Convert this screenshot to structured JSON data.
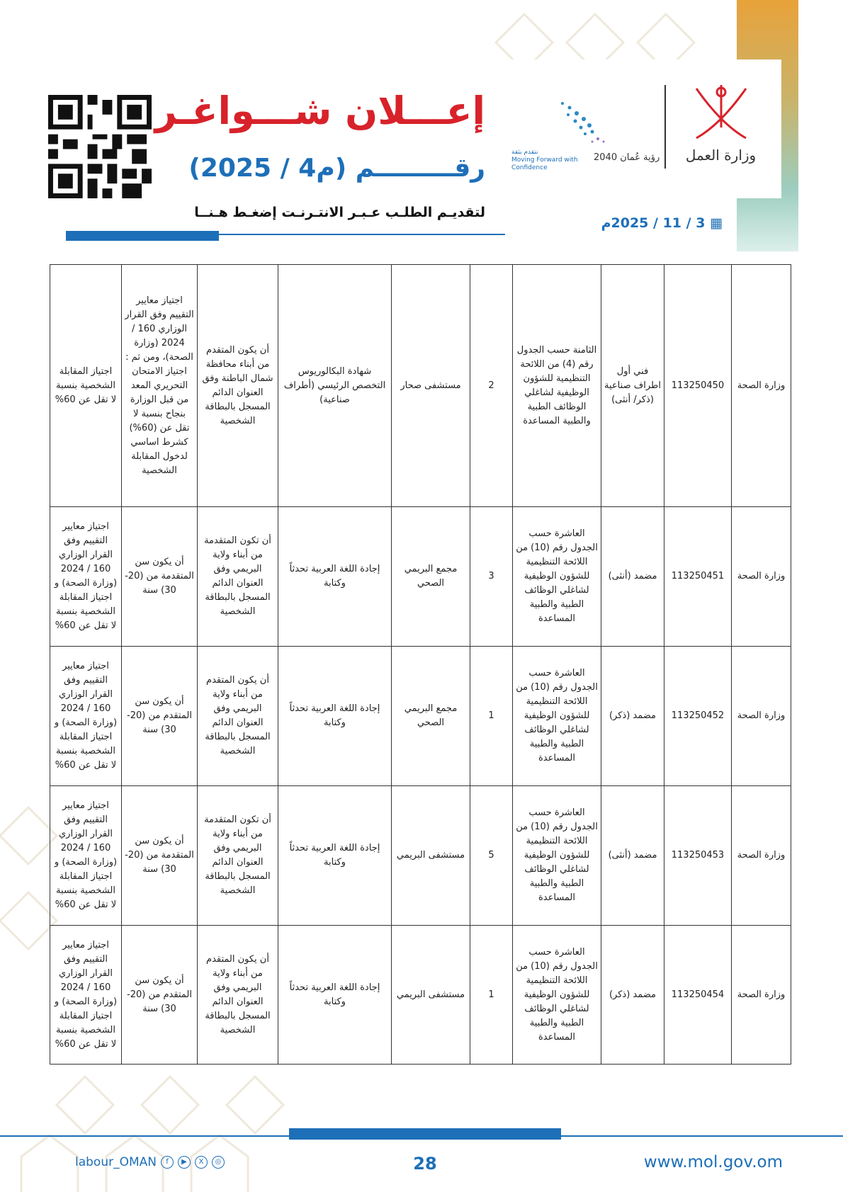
{
  "header": {
    "title": "إعـــلان شـــواغـر",
    "number": "رقـــــــــم (م4 / 2025)",
    "apply_link": "لتقديـم الطلـب عـبـر الانتـرنـت إضغـط هـنــا",
    "date": "3 / 11 / 2025م",
    "ministry_logo_text": "وزارة العمل",
    "vision_text_ar": "رؤية عُمان 2040",
    "vision_tagline": "Moving Forward with Confidence",
    "vision_tagline_ar": "نتقدم بثقة",
    "accent_color": "#d8222a",
    "brand_color": "#1d6fb8"
  },
  "table": {
    "rows": [
      [
        "وزارة الصحة",
        "113250450",
        "فني أول اطراف صناعية (ذكر/ أنثى)",
        "الثامنة حسب الجدول رقم (4) من اللائحة التنظيمية للشؤون الوظيفية لشاغلي الوظائف الطبية والطبية المساعدة",
        "2",
        "مستشفى صحار",
        "شهادة البكالوريوس التخصص الرئيسي (أطراف صناعية)",
        "أن يكون المتقدم من أبناء محافظة شمال الباطنة وفق العنوان الدائم المسجل بالبطاقة الشخصية",
        "اجتياز معايير التقييم وفق القرار الوزاري 160 / 2024 (وزارة الصحة)، ومن ثم : اجتياز الامتحان التحريري المعد من قبل الوزارة بنجاح بنسبة لا تقل عن (60%) كشرط اساسي لدخول المقابلة الشخصية",
        "اجتياز المقابلة الشخصية بنسبة لا تقل عن 60%"
      ],
      [
        "وزارة الصحة",
        "113250451",
        "مضمد (أنثى)",
        "العاشرة حسب الجدول رقم (10) من اللائحة التنظيمية للشؤون الوظيفية لشاغلي الوظائف الطبية والطبية المساعدة",
        "3",
        "مجمع البريمي الصحي",
        "إجادة اللغة العربية تحدثاً وكتابة",
        "أن تكون المتقدمة من أبناء ولاية البريمي وفق العنوان الدائم المسجل بالبطاقة الشخصية",
        "أن يكون سن المتقدمة من (20-30) سنة",
        "اجتياز معايير التقييم وفق القرار الوزاري 160 / 2024 (وزارة الصحة) و اجتياز المقابلة الشخصية بنسبة لا تقل عن 60%"
      ],
      [
        "وزارة الصحة",
        "113250452",
        "مضمد (ذكر)",
        "العاشرة حسب الجدول رقم (10) من اللائحة التنظيمية للشؤون الوظيفية لشاغلي الوظائف الطبية والطبية المساعدة",
        "1",
        "مجمع البريمي الصحي",
        "إجادة اللغة العربية تحدثاً وكتابة",
        "أن يكون المتقدم من أبناء ولاية البريمي وفق العنوان الدائم المسجل بالبطاقة الشخصية",
        "أن يكون سن المتقدم من (20-30) سنة",
        "اجتياز معايير التقييم وفق القرار الوزاري 160 / 2024 (وزارة الصحة) و اجتياز المقابلة الشخصية بنسبة لا تقل عن 60%"
      ],
      [
        "وزارة الصحة",
        "113250453",
        "مضمد (أنثى)",
        "العاشرة حسب الجدول رقم (10) من اللائحة التنظيمية للشؤون الوظيفية لشاغلي الوظائف الطبية والطبية المساعدة",
        "5",
        "مستشفى البريمي",
        "إجادة اللغة العربية تحدثاً وكتابة",
        "أن تكون المتقدمة من أبناء ولاية البريمي وفق العنوان الدائم المسجل بالبطاقة الشخصية",
        "أن يكون سن المتقدمة من (20-30) سنة",
        "اجتياز معايير التقييم وفق القرار الوزاري 160 / 2024 (وزارة الصحة) و اجتياز المقابلة الشخصية بنسبة لا تقل عن 60%"
      ],
      [
        "وزارة الصحة",
        "113250454",
        "مضمد (ذكر)",
        "العاشرة حسب الجدول رقم (10) من اللائحة التنظيمية للشؤون الوظيفية لشاغلي الوظائف الطبية والطبية المساعدة",
        "1",
        "مستشفى البريمي",
        "إجادة اللغة العربية تحدثاً وكتابة",
        "أن يكون المتقدم من أبناء ولاية البريمي وفق العنوان الدائم المسجل بالبطاقة الشخصية",
        "أن يكون سن المتقدم من (20-30) سنة",
        "اجتياز معايير التقييم وفق القرار الوزاري 160 / 2024 (وزارة الصحة) و اجتياز المقابلة الشخصية بنسبة لا تقل عن 60%"
      ]
    ]
  },
  "footer": {
    "social_handle": "labour_OMAN",
    "social_icons": [
      "facebook-icon",
      "youtube-icon",
      "x-icon",
      "instagram-icon"
    ],
    "page_number": "28",
    "website": "www.mol.gov.om"
  }
}
